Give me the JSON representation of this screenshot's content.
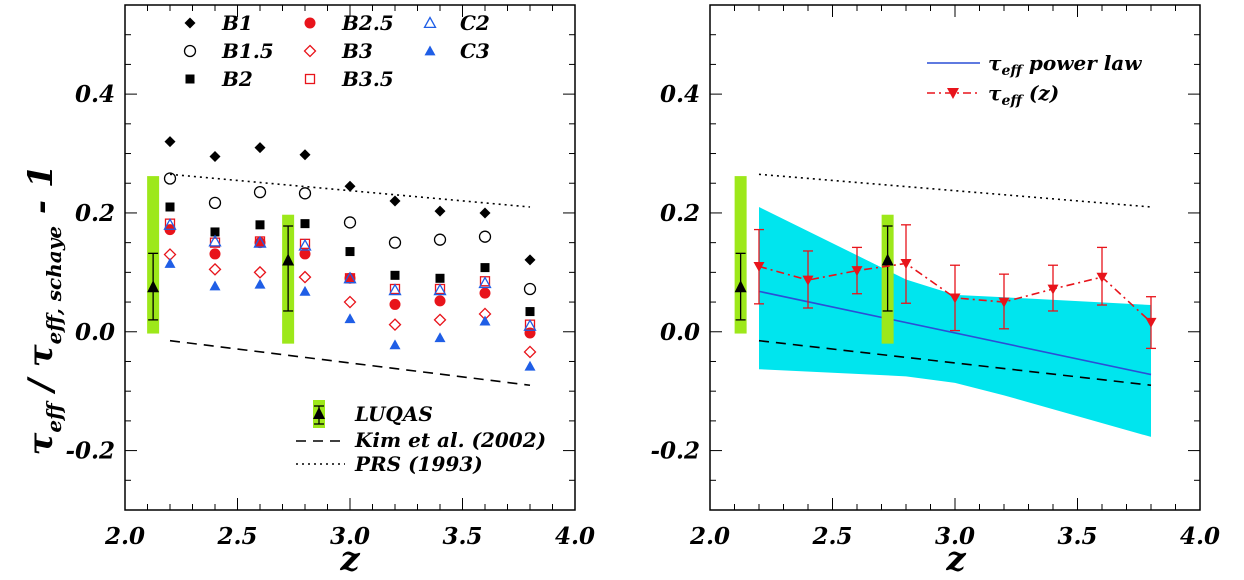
{
  "colors": {
    "black": "#000000",
    "red": "#e8141b",
    "blue": "#1f5ee6",
    "green": "#9de81a",
    "cyan": "#00e5ee",
    "line_blue": "#2a4fd6"
  },
  "chart_data": [
    {
      "type": "scatter",
      "xlabel": "z",
      "ylabel": "τeff / τeff, schaye - 1",
      "ylabel_parts": {
        "tau": "τ",
        "sub1": "eff",
        "slash": " / ",
        "sub2": "eff, schaye",
        "tail": " - 1"
      },
      "xlim": [
        2.0,
        4.0
      ],
      "ylim": [
        -0.3,
        0.55
      ],
      "xticks": [
        "2.0",
        "2.5",
        "3.0",
        "3.5",
        "4.0"
      ],
      "yticks": [
        "-0.2",
        "0.0",
        "0.2",
        "0.4"
      ],
      "series": [
        {
          "name": "B1",
          "marker": "diamond-filled",
          "color": "#000000",
          "x": [
            2.2,
            2.4,
            2.6,
            2.8,
            3.0,
            3.2,
            3.4,
            3.6,
            3.8
          ],
          "y": [
            0.32,
            0.295,
            0.31,
            0.298,
            0.245,
            0.22,
            0.203,
            0.2,
            0.121
          ]
        },
        {
          "name": "B1.5",
          "marker": "circle-open",
          "color": "#000000",
          "x": [
            2.2,
            2.4,
            2.6,
            2.8,
            3.0,
            3.2,
            3.4,
            3.6,
            3.8
          ],
          "y": [
            0.258,
            0.217,
            0.235,
            0.233,
            0.184,
            0.15,
            0.155,
            0.16,
            0.072
          ]
        },
        {
          "name": "B2",
          "marker": "square-filled",
          "color": "#000000",
          "x": [
            2.2,
            2.4,
            2.6,
            2.8,
            3.0,
            3.2,
            3.4,
            3.6,
            3.8
          ],
          "y": [
            0.21,
            0.168,
            0.18,
            0.182,
            0.135,
            0.095,
            0.09,
            0.108,
            0.034
          ]
        },
        {
          "name": "B2.5",
          "marker": "circle-filled",
          "color": "#e8141b",
          "x": [
            2.2,
            2.4,
            2.6,
            2.8,
            3.0,
            3.2,
            3.4,
            3.6,
            3.8
          ],
          "y": [
            0.172,
            0.131,
            0.15,
            0.131,
            0.09,
            0.046,
            0.052,
            0.065,
            -0.002
          ]
        },
        {
          "name": "B3",
          "marker": "diamond-open",
          "color": "#e8141b",
          "x": [
            2.2,
            2.4,
            2.6,
            2.8,
            3.0,
            3.2,
            3.4,
            3.6,
            3.8
          ],
          "y": [
            0.13,
            0.105,
            0.1,
            0.092,
            0.05,
            0.012,
            0.02,
            0.03,
            -0.034
          ]
        },
        {
          "name": "B3.5",
          "marker": "square-open",
          "color": "#e8141b",
          "x": [
            2.2,
            2.4,
            2.6,
            2.8,
            3.0,
            3.2,
            3.4,
            3.6,
            3.8
          ],
          "y": [
            0.182,
            0.15,
            0.152,
            0.148,
            0.09,
            0.072,
            0.072,
            0.085,
            0.012
          ]
        },
        {
          "name": "C2",
          "marker": "triangle-open",
          "color": "#1f5ee6",
          "x": [
            2.2,
            2.4,
            2.6,
            2.8,
            3.0,
            3.2,
            3.4,
            3.6,
            3.8
          ],
          "y": [
            0.18,
            0.152,
            0.15,
            0.145,
            0.09,
            0.07,
            0.07,
            0.082,
            0.01
          ]
        },
        {
          "name": "C3",
          "marker": "triangle-filled",
          "color": "#1f5ee6",
          "x": [
            2.2,
            2.4,
            2.6,
            2.8,
            3.0,
            3.2,
            3.4,
            3.6,
            3.8
          ],
          "y": [
            0.115,
            0.077,
            0.08,
            0.068,
            0.022,
            -0.022,
            -0.01,
            0.018,
            -0.058
          ]
        }
      ],
      "luqas": {
        "name": "LUQAS",
        "points": [
          {
            "x": 2.125,
            "y": 0.075,
            "err_low": 0.02,
            "err_high": 0.132,
            "band_low": -0.003,
            "band_high": 0.262
          },
          {
            "x": 2.725,
            "y": 0.12,
            "err_low": 0.035,
            "err_high": 0.178,
            "band_low": -0.02,
            "band_high": 0.197
          }
        ]
      },
      "kim_2002": {
        "name": "Kim et al. (2002)",
        "x": [
          2.2,
          3.8
        ],
        "y": [
          -0.015,
          -0.09
        ]
      },
      "prs_1993": {
        "name": "PRS (1993)",
        "x": [
          2.2,
          3.8
        ],
        "y": [
          0.265,
          0.21
        ]
      }
    },
    {
      "type": "line",
      "xlabel": "z",
      "xlim": [
        2.0,
        4.0
      ],
      "ylim": [
        -0.3,
        0.55
      ],
      "xticks": [
        "2.0",
        "2.5",
        "3.0",
        "3.5",
        "4.0"
      ],
      "yticks": [
        "-0.2",
        "0.0",
        "0.2",
        "0.4"
      ],
      "power_law": {
        "label_tau": "τ",
        "label_sub": "eff",
        "label_rest": " power law",
        "x": [
          2.2,
          3.8
        ],
        "y": [
          0.068,
          -0.072
        ],
        "band_x": [
          2.2,
          2.8,
          3.0,
          3.2,
          3.8
        ],
        "band_upper": [
          0.21,
          0.088,
          0.062,
          0.058,
          0.045
        ],
        "band_lower": [
          -0.063,
          -0.075,
          -0.086,
          -0.107,
          -0.177
        ]
      },
      "tau_z": {
        "label_tau": "τ",
        "label_sub": "eff",
        "label_rest": " (z)",
        "x": [
          2.2,
          2.4,
          2.6,
          2.8,
          3.0,
          3.2,
          3.4,
          3.6,
          3.8
        ],
        "y": [
          0.11,
          0.087,
          0.103,
          0.115,
          0.057,
          0.05,
          0.072,
          0.092,
          0.016
        ],
        "err_high": [
          0.172,
          0.136,
          0.142,
          0.18,
          0.112,
          0.097,
          0.112,
          0.142,
          0.059
        ],
        "err_low": [
          0.047,
          0.04,
          0.064,
          0.048,
          0.002,
          0.005,
          0.035,
          0.045,
          -0.028
        ]
      },
      "luqas": {
        "points": [
          {
            "x": 2.125,
            "y": 0.075,
            "err_low": 0.02,
            "err_high": 0.132,
            "band_low": -0.003,
            "band_high": 0.262
          },
          {
            "x": 2.725,
            "y": 0.12,
            "err_low": 0.035,
            "err_high": 0.178,
            "band_low": -0.02,
            "band_high": 0.197
          }
        ]
      },
      "kim_2002": {
        "x": [
          2.2,
          3.8
        ],
        "y": [
          -0.015,
          -0.09
        ]
      },
      "prs_1993": {
        "x": [
          2.2,
          3.8
        ],
        "y": [
          0.265,
          0.21
        ]
      }
    }
  ]
}
